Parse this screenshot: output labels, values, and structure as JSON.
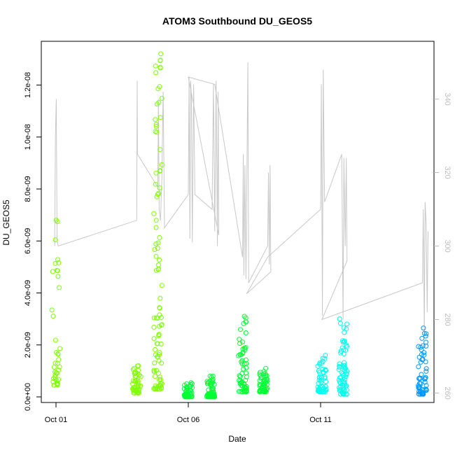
{
  "chart_data": {
    "type": "scatter",
    "title": "ATOM3 Southbound DU_GEOS5",
    "xlabel": "Date",
    "ylabel": "DU_GEOS5",
    "x_ticks": [
      "Oct 01",
      "Oct 06",
      "Oct 11"
    ],
    "x_range_days": [
      0,
      15.5
    ],
    "y_ticks": [
      "0.0e+00",
      "2.0e-09",
      "4.0e-09",
      "6.0e-09",
      "8.0e-09",
      "1.0e-08",
      "1.2e-08"
    ],
    "y_range": [
      0,
      1.35e-08
    ],
    "y2_ticks": [
      "260",
      "280",
      "300",
      "320",
      "340"
    ],
    "y2_range": [
      258,
      350
    ],
    "grid": false,
    "series": [
      {
        "color": "#7fff00",
        "clusters": [
          {
            "day": 0.0,
            "ymin": 4.5e-10,
            "ymax": 6.8e-09,
            "n": 40
          },
          {
            "day": 3.05,
            "ymin": 1.5e-10,
            "ymax": 1.2e-09,
            "n": 45
          },
          {
            "day": 3.85,
            "ymin": 3e-10,
            "ymax": 1.32e-08,
            "n": 95
          }
        ]
      },
      {
        "color": "#00ff33",
        "clusters": [
          {
            "day": 5.0,
            "ymin": 0.0,
            "ymax": 5.5e-10,
            "n": 50
          },
          {
            "day": 5.85,
            "ymin": 0.0,
            "ymax": 8e-10,
            "n": 60
          },
          {
            "day": 7.05,
            "ymin": 2e-10,
            "ymax": 3.1e-09,
            "n": 60
          },
          {
            "day": 7.85,
            "ymin": 2e-10,
            "ymax": 1.1e-09,
            "n": 55
          }
        ]
      },
      {
        "color": "#00ffee",
        "clusters": [
          {
            "day": 10.05,
            "ymin": 2e-10,
            "ymax": 1.6e-09,
            "n": 55
          },
          {
            "day": 10.85,
            "ymin": 1e-10,
            "ymax": 3e-09,
            "n": 70
          }
        ]
      },
      {
        "color": "#0099ff",
        "clusters": [
          {
            "day": 13.85,
            "ymin": 1e-10,
            "ymax": 2.65e-09,
            "n": 60
          }
        ]
      }
    ],
    "secondary_line": {
      "color": "#c8c8c8",
      "y_axis": "right",
      "points": [
        [
          -0.05,
          300
        ],
        [
          -0.02,
          330
        ],
        [
          0.01,
          340
        ],
        [
          0.04,
          302
        ],
        [
          0.08,
          300
        ],
        [
          3.05,
          307
        ],
        [
          3.07,
          345
        ],
        [
          3.08,
          325
        ],
        [
          3.85,
          316
        ],
        [
          3.87,
          340
        ],
        [
          3.9,
          310
        ],
        [
          3.95,
          307
        ],
        [
          4.0,
          318
        ],
        [
          4.05,
          342
        ],
        [
          4.1,
          305
        ],
        [
          5.0,
          314
        ],
        [
          5.03,
          346
        ],
        [
          5.06,
          302
        ],
        [
          5.09,
          345
        ],
        [
          5.12,
          340
        ],
        [
          5.15,
          301
        ],
        [
          5.2,
          344
        ],
        [
          5.25,
          314
        ],
        [
          5.9,
          310
        ],
        [
          5.95,
          344
        ],
        [
          6.0,
          304
        ],
        [
          6.05,
          345
        ],
        [
          6.1,
          300
        ],
        [
          6.13,
          342
        ],
        [
          6.15,
          303
        ],
        [
          5.0,
          346
        ],
        [
          6.0,
          344
        ],
        [
          7.05,
          297
        ],
        [
          7.08,
          325
        ],
        [
          7.1,
          292
        ],
        [
          7.14,
          322
        ],
        [
          7.18,
          291
        ],
        [
          7.25,
          350
        ],
        [
          7.28,
          290
        ],
        [
          8.0,
          300
        ],
        [
          8.03,
          320
        ],
        [
          8.06,
          295
        ],
        [
          8.09,
          322
        ],
        [
          8.12,
          293
        ],
        [
          7.2,
          287
        ],
        [
          8.0,
          297
        ],
        [
          10.0,
          310
        ],
        [
          10.03,
          344
        ],
        [
          10.07,
          281
        ],
        [
          10.1,
          348
        ],
        [
          10.15,
          312
        ],
        [
          10.8,
          325
        ],
        [
          10.85,
          280
        ],
        [
          10.88,
          324
        ],
        [
          10.93,
          300
        ],
        [
          10.97,
          324
        ],
        [
          11.0,
          296
        ],
        [
          10.05,
          280
        ],
        [
          13.85,
          290
        ],
        [
          13.88,
          310
        ],
        [
          13.92,
          276
        ],
        [
          13.95,
          312
        ],
        [
          13.99,
          306
        ],
        [
          14.03,
          282
        ],
        [
          14.06,
          304
        ]
      ]
    }
  }
}
